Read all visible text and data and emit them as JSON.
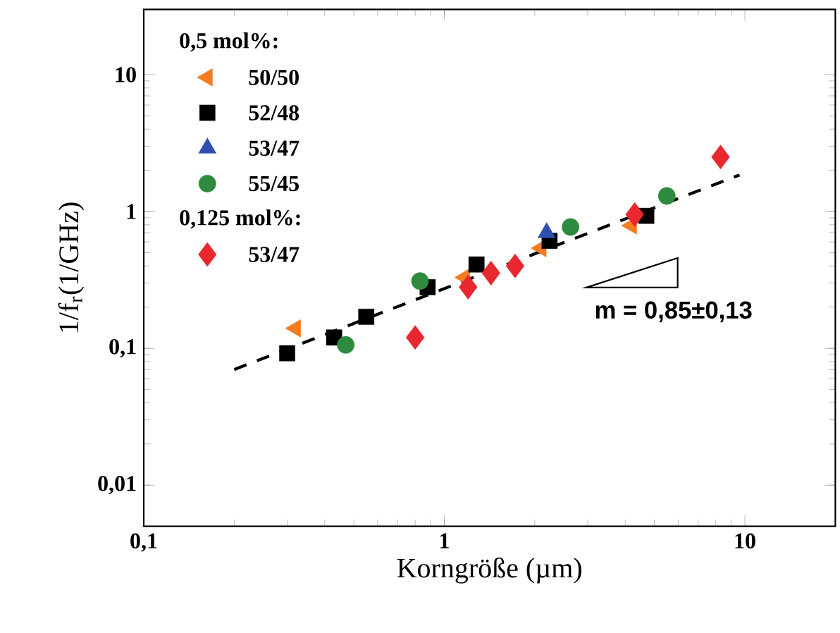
{
  "chart_data": {
    "type": "scatter",
    "xlabel": "Korngröße (µm)",
    "ylabel": "1/f$_{r}$(1/GHz)",
    "log": "xy",
    "xlim": [
      0.1,
      20
    ],
    "ylim": [
      0.005,
      30
    ],
    "xticks": [
      {
        "value": 0.1,
        "label": "0,1"
      },
      1,
      10
    ],
    "yticks": [
      {
        "value": 0.01,
        "label": "0,01"
      },
      {
        "value": 0.1,
        "label": "0,1"
      },
      1,
      10
    ],
    "grid": false,
    "legend": "top left",
    "annotations": [
      "0,5 mol%:",
      "0,125 mol%:",
      "m = 0,85±0,13"
    ],
    "series": [
      {
        "name": "50/50",
        "color": "#f47b20",
        "marker": "triangle-left",
        "x": [
          0.32,
          1.17,
          2.1,
          4.2
        ],
        "values": [
          0.14,
          0.33,
          0.54,
          0.79
        ]
      },
      {
        "name": "52/48",
        "color": "#000000",
        "marker": "square",
        "x": [
          0.3,
          0.43,
          0.55,
          0.88,
          1.28,
          2.24,
          4.7
        ],
        "values": [
          0.092,
          0.12,
          0.17,
          0.28,
          0.41,
          0.61,
          0.93
        ]
      },
      {
        "name": "53/47",
        "color": "#3050b0",
        "marker": "triangle",
        "x": [
          2.19
        ],
        "values": [
          0.7
        ]
      },
      {
        "name": "55/45",
        "color": "#2e8b3e",
        "marker": "circle",
        "x": [
          0.47,
          0.83,
          2.63,
          5.5
        ],
        "values": [
          0.106,
          0.31,
          0.77,
          1.3
        ]
      },
      {
        "name": "53/47",
        "color": "#e8282e",
        "marker": "diamond",
        "x": [
          0.8,
          1.2,
          1.43,
          1.72,
          4.3,
          8.3
        ],
        "values": [
          0.12,
          0.28,
          0.355,
          0.4,
          0.95,
          2.5
        ]
      },
      {
        "type": "line",
        "color": "#000000",
        "marker": "none",
        "line_style": "dashed",
        "x": [
          0.2,
          9.6
        ],
        "values": [
          0.07,
          1.85
        ]
      }
    ]
  }
}
